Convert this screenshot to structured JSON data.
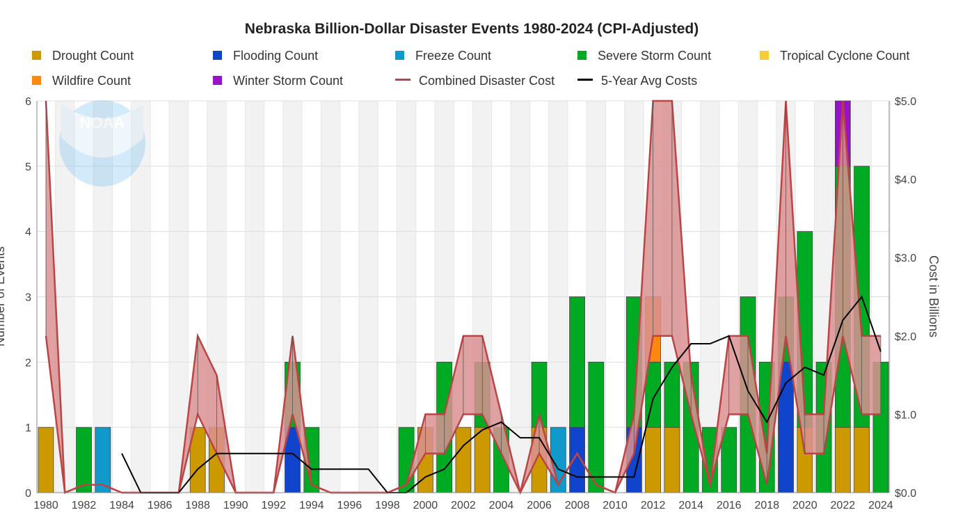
{
  "chart_data": {
    "type": "bar",
    "title": "Nebraska Billion-Dollar Disaster Events 1980-2024 (CPI-Adjusted)",
    "ylabel_left": "Number of Events",
    "ylabel_right": "Cost in Billions",
    "ylim_left": [
      0,
      6
    ],
    "ylim_right": [
      0,
      5
    ],
    "yticks_left": [
      "0",
      "1",
      "2",
      "3",
      "4",
      "5",
      "6"
    ],
    "yticks_right": [
      "$0.0",
      "$1.0",
      "$2.0",
      "$3.0",
      "$4.0",
      "$5.0"
    ],
    "x": [
      1980,
      1981,
      1982,
      1983,
      1984,
      1985,
      1986,
      1987,
      1988,
      1989,
      1990,
      1991,
      1992,
      1993,
      1994,
      1995,
      1996,
      1997,
      1998,
      1999,
      2000,
      2001,
      2002,
      2003,
      2004,
      2005,
      2006,
      2007,
      2008,
      2009,
      2010,
      2011,
      2012,
      2013,
      2014,
      2015,
      2016,
      2017,
      2018,
      2019,
      2020,
      2021,
      2022,
      2023,
      2024
    ],
    "xtick_labels": [
      "1980",
      "1982",
      "1984",
      "1986",
      "1988",
      "1990",
      "1992",
      "1994",
      "1996",
      "1998",
      "2000",
      "2002",
      "2004",
      "2006",
      "2008",
      "2010",
      "2012",
      "2014",
      "2016",
      "2018",
      "2020",
      "2022",
      "2024"
    ],
    "series": [
      {
        "name": "Drought Count",
        "color": "#cc9900",
        "values": [
          1,
          0,
          0,
          0,
          0,
          0,
          0,
          0,
          1,
          1,
          0,
          0,
          0,
          0,
          0,
          0,
          0,
          0,
          0,
          0,
          1,
          0,
          1,
          1,
          0,
          0,
          1,
          0,
          0,
          0,
          0,
          0,
          1,
          1,
          0,
          0,
          0,
          0,
          0,
          0,
          1,
          0,
          1,
          1,
          0
        ]
      },
      {
        "name": "Flooding Count",
        "color": "#1144cc",
        "values": [
          0,
          0,
          0,
          0,
          0,
          0,
          0,
          0,
          0,
          0,
          0,
          0,
          0,
          1,
          0,
          0,
          0,
          0,
          0,
          0,
          0,
          0,
          0,
          0,
          0,
          0,
          0,
          0,
          1,
          0,
          0,
          1,
          0,
          0,
          0,
          0,
          0,
          0,
          0,
          2,
          0,
          0,
          0,
          0,
          0
        ]
      },
      {
        "name": "Freeze Count",
        "color": "#1199cc",
        "values": [
          0,
          0,
          0,
          1,
          0,
          0,
          0,
          0,
          0,
          0,
          0,
          0,
          0,
          0,
          0,
          0,
          0,
          0,
          0,
          0,
          0,
          0,
          0,
          0,
          0,
          0,
          0,
          1,
          0,
          0,
          0,
          0,
          0,
          0,
          0,
          0,
          0,
          0,
          0,
          0,
          0,
          0,
          0,
          0,
          0
        ]
      },
      {
        "name": "Severe Storm Count",
        "color": "#00aa22",
        "values": [
          0,
          0,
          1,
          0,
          0,
          0,
          0,
          0,
          0,
          0,
          0,
          0,
          0,
          1,
          1,
          0,
          0,
          0,
          0,
          1,
          0,
          2,
          0,
          1,
          1,
          0,
          1,
          0,
          2,
          2,
          0,
          2,
          1,
          1,
          2,
          1,
          1,
          3,
          2,
          1,
          3,
          2,
          4,
          4,
          2
        ]
      },
      {
        "name": "Tropical Cyclone Count",
        "color": "#f7cc3a",
        "values": [
          0,
          0,
          0,
          0,
          0,
          0,
          0,
          0,
          0,
          0,
          0,
          0,
          0,
          0,
          0,
          0,
          0,
          0,
          0,
          0,
          0,
          0,
          0,
          0,
          0,
          0,
          0,
          0,
          0,
          0,
          0,
          0,
          0,
          0,
          0,
          0,
          0,
          0,
          0,
          0,
          0,
          0,
          0,
          0,
          0
        ]
      },
      {
        "name": "Wildfire Count",
        "color": "#ff8811",
        "values": [
          0,
          0,
          0,
          0,
          0,
          0,
          0,
          0,
          0,
          0,
          0,
          0,
          0,
          0,
          0,
          0,
          0,
          0,
          0,
          0,
          0,
          0,
          0,
          0,
          0,
          0,
          0,
          0,
          0,
          0,
          0,
          0,
          1,
          0,
          0,
          0,
          0,
          0,
          0,
          0,
          0,
          0,
          0,
          0,
          0
        ]
      },
      {
        "name": "Winter Storm Count",
        "color": "#9911cc",
        "values": [
          0,
          0,
          0,
          0,
          0,
          0,
          0,
          0,
          0,
          0,
          0,
          0,
          0,
          0,
          0,
          0,
          0,
          0,
          0,
          0,
          0,
          0,
          0,
          0,
          0,
          0,
          0,
          0,
          0,
          0,
          0,
          0,
          0,
          0,
          0,
          0,
          0,
          0,
          0,
          0,
          0,
          0,
          1,
          0,
          0
        ]
      }
    ],
    "cost_band": {
      "name": "Combined Disaster Cost",
      "color": "#bb4444",
      "fill": "#d99090",
      "lower": [
        2.0,
        0,
        0.1,
        0.1,
        0,
        0,
        0,
        0,
        1.0,
        0.5,
        0,
        0,
        0,
        1.0,
        0.1,
        0,
        0,
        0,
        0,
        0.1,
        0.5,
        0.5,
        1.0,
        1.0,
        0.5,
        0,
        0.5,
        0.1,
        0.5,
        0.1,
        0,
        0.5,
        2.0,
        2.0,
        1.0,
        0.1,
        1.0,
        1.0,
        0.1,
        2.0,
        0.5,
        0.5,
        2.0,
        1.0,
        1.0
      ],
      "upper": [
        5.0,
        0,
        0.1,
        0.1,
        0,
        0,
        0,
        0,
        2.0,
        1.5,
        0,
        0,
        0,
        2.0,
        0.1,
        0,
        0,
        0,
        0,
        0.1,
        1.0,
        1.0,
        2.0,
        2.0,
        1.0,
        0,
        1.0,
        0.1,
        0.5,
        0.1,
        0,
        1.0,
        5.0,
        5.0,
        1.5,
        0.1,
        2.0,
        2.0,
        0.5,
        5.0,
        1.0,
        1.0,
        5.0,
        2.0,
        2.0
      ]
    },
    "avg_line": {
      "name": "5-Year Avg Costs",
      "color": "#000000",
      "x": [
        1984,
        1985,
        1986,
        1987,
        1988,
        1989,
        1990,
        1991,
        1992,
        1993,
        1994,
        1995,
        1996,
        1997,
        1998,
        1999,
        2000,
        2001,
        2002,
        2003,
        2004,
        2005,
        2006,
        2007,
        2008,
        2009,
        2010,
        2011,
        2012,
        2013,
        2014,
        2015,
        2016,
        2017,
        2018,
        2019,
        2020,
        2021,
        2022,
        2023,
        2024
      ],
      "values": [
        0.5,
        0,
        0,
        0,
        0.3,
        0.5,
        0.5,
        0.5,
        0.5,
        0.5,
        0.3,
        0.3,
        0.3,
        0.3,
        0,
        0,
        0.2,
        0.3,
        0.6,
        0.8,
        0.9,
        0.7,
        0.7,
        0.3,
        0.2,
        0.2,
        0.2,
        0.2,
        1.2,
        1.6,
        1.9,
        1.9,
        2.0,
        1.3,
        0.9,
        1.4,
        1.6,
        1.5,
        2.2,
        2.5,
        1.8
      ]
    },
    "grid": true,
    "legend_position": "top"
  },
  "legend_cols": [
    {
      "entries": [
        {
          "name": "Drought Count",
          "kind": "box",
          "color": "#cc9900"
        },
        {
          "name": "Wildfire Count",
          "kind": "box",
          "color": "#ff8811"
        }
      ]
    },
    {
      "entries": [
        {
          "name": "Flooding Count",
          "kind": "box",
          "color": "#1144cc"
        },
        {
          "name": "Winter Storm Count",
          "kind": "box",
          "color": "#9911cc"
        }
      ]
    },
    {
      "entries": [
        {
          "name": "Freeze Count",
          "kind": "box",
          "color": "#1199cc"
        },
        {
          "name": "Combined Disaster Cost",
          "kind": "line",
          "color": "#bb4444"
        }
      ]
    },
    {
      "entries": [
        {
          "name": "Severe Storm Count",
          "kind": "box",
          "color": "#00aa22"
        },
        {
          "name": "5-Year Avg Costs",
          "kind": "line",
          "color": "#000000"
        }
      ]
    },
    {
      "entries": [
        {
          "name": "Tropical Cyclone Count",
          "kind": "box",
          "color": "#f7cc3a"
        }
      ]
    }
  ],
  "logo": {
    "text": "NOAA",
    "icon": "noaa-logo-icon"
  }
}
